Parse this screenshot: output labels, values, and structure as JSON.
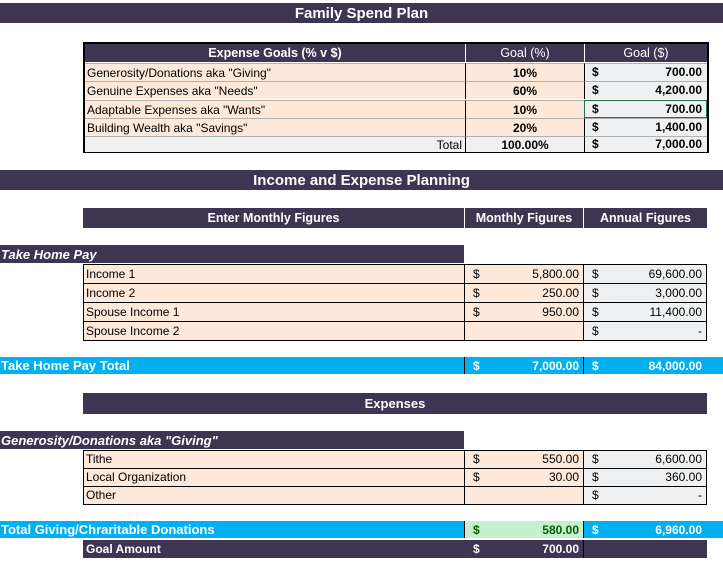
{
  "title": "Family Spend Plan",
  "goals": {
    "headers": [
      "Expense Goals (% v $)",
      "Goal (%)",
      "Goal ($)"
    ],
    "rows": [
      {
        "label": "Generosity/Donations aka \"Giving\"",
        "pct": "10%",
        "cur": "$",
        "amt": "700.00"
      },
      {
        "label": "Genuine Expenses aka \"Needs\"",
        "pct": "60%",
        "cur": "$",
        "amt": "4,200.00"
      },
      {
        "label": "Adaptable Expenses aka \"Wants\"",
        "pct": "10%",
        "cur": "$",
        "amt": "700.00"
      },
      {
        "label": "Building Wealth aka \"Savings\"",
        "pct": "20%",
        "cur": "$",
        "amt": "1,400.00"
      }
    ],
    "total": {
      "label": "Total",
      "pct": "100.00%",
      "cur": "$",
      "amt": "7,000.00"
    }
  },
  "planning": {
    "title": "Income and Expense Planning",
    "headers": [
      "Enter Monthly Figures",
      "Monthly Figures",
      "Annual Figures"
    ]
  },
  "take_home": {
    "section": "Take Home Pay",
    "rows": [
      {
        "label": "Income 1",
        "mcur": "$",
        "monthly": "5,800.00",
        "acur": "$",
        "annual": "69,600.00"
      },
      {
        "label": "Income 2",
        "mcur": "$",
        "monthly": "250.00",
        "acur": "$",
        "annual": "3,000.00"
      },
      {
        "label": "Spouse Income 1",
        "mcur": "$",
        "monthly": "950.00",
        "acur": "$",
        "annual": "11,400.00"
      },
      {
        "label": "Spouse Income 2",
        "mcur": "",
        "monthly": "",
        "acur": "$",
        "annual": "-"
      }
    ],
    "total": {
      "label": "Take Home Pay Total",
      "mcur": "$",
      "monthly": "7,000.00",
      "acur": "$",
      "annual": "84,000.00"
    }
  },
  "expenses": {
    "title": "Expenses"
  },
  "giving": {
    "section": "Generosity/Donations aka \"Giving\"",
    "rows": [
      {
        "label": "Tithe",
        "mcur": "$",
        "monthly": "550.00",
        "acur": "$",
        "annual": "6,600.00"
      },
      {
        "label": "Local Organization",
        "mcur": "$",
        "monthly": "30.00",
        "acur": "$",
        "annual": "360.00"
      },
      {
        "label": "Other",
        "mcur": "",
        "monthly": "",
        "acur": "$",
        "annual": "-"
      }
    ],
    "total": {
      "label": "Total Giving/Chraritable Donations",
      "mcur": "$",
      "monthly": "580.00",
      "acur": "$",
      "annual": "6,960.00"
    },
    "goal": {
      "label": "Goal Amount",
      "mcur": "$",
      "monthly": "700.00"
    }
  }
}
